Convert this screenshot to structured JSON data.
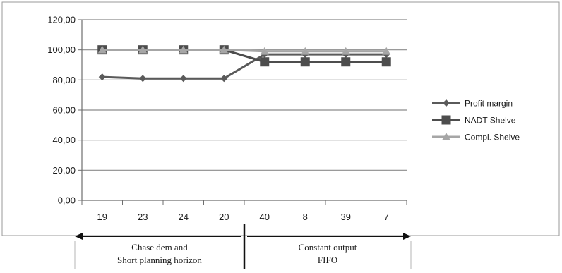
{
  "chart_data": {
    "type": "line",
    "categories": [
      "19",
      "23",
      "24",
      "20",
      "40",
      "8",
      "39",
      "7"
    ],
    "ylim": [
      0,
      120
    ],
    "yticks": [
      "0,00",
      "20,00",
      "40,00",
      "60,00",
      "80,00",
      "100,00",
      "120,00"
    ],
    "grid": true,
    "legend_position": "right",
    "series": [
      {
        "name": "Profit margin",
        "marker": "diamond",
        "color": "#5a5a5a",
        "values": [
          82,
          81,
          81,
          81,
          97,
          97,
          97,
          97
        ]
      },
      {
        "name": "NADT Shelve",
        "marker": "square",
        "color": "#4d4d4d",
        "values": [
          100,
          100,
          100,
          100,
          92,
          92,
          92,
          92
        ]
      },
      {
        "name": "Compl. Shelve",
        "marker": "triangle",
        "color": "#a6a6a6",
        "values": [
          100,
          100,
          100,
          100,
          99,
          99,
          99,
          99
        ]
      }
    ],
    "groups": [
      {
        "label_line1": "Chase dem and",
        "label_line2": "Short planning horizon",
        "span": [
          0,
          3
        ]
      },
      {
        "label_line1": "Constant output",
        "label_line2": "FIFO",
        "span": [
          4,
          7
        ]
      }
    ]
  }
}
